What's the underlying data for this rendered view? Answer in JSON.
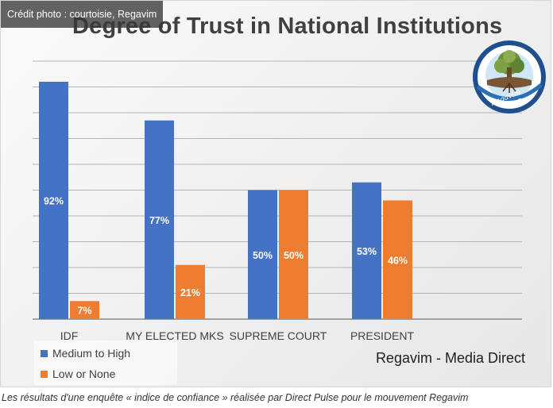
{
  "credit": "Crédit photo : courtoisie, Regavim",
  "caption": "Les résultats d'une enquête « indice de confiance » réalisée par Direct Pulse pour le mouvement Regavim",
  "source_note": "Regavim - Media Direct",
  "logo": {
    "name": "regavim-logo",
    "hebrew_text": "רגבים",
    "latin_text": "Regavim"
  },
  "colors": {
    "medium_high": "#4472C4",
    "low_none": "#ED7D31",
    "grid": "#b4b4b4",
    "label_text": "#ffffff"
  },
  "chart_data": {
    "type": "bar",
    "title": "Degree of Trust in National Institutions",
    "xlabel": "",
    "ylabel": "",
    "ylim": [
      0,
      100
    ],
    "grid": true,
    "legend_placement": "bottom-left",
    "categories": [
      "IDF",
      "MY ELECTED MKS",
      "SUPREME COURT",
      "PRESIDENT"
    ],
    "series": [
      {
        "name": "Medium to High",
        "values": [
          92,
          77,
          50,
          53
        ],
        "labels": [
          "92%",
          "77%",
          "50%",
          "53%"
        ]
      },
      {
        "name": "Low or None",
        "values": [
          7,
          21,
          50,
          46
        ],
        "labels": [
          "7%",
          "21%",
          "50%",
          "46%"
        ]
      }
    ]
  }
}
